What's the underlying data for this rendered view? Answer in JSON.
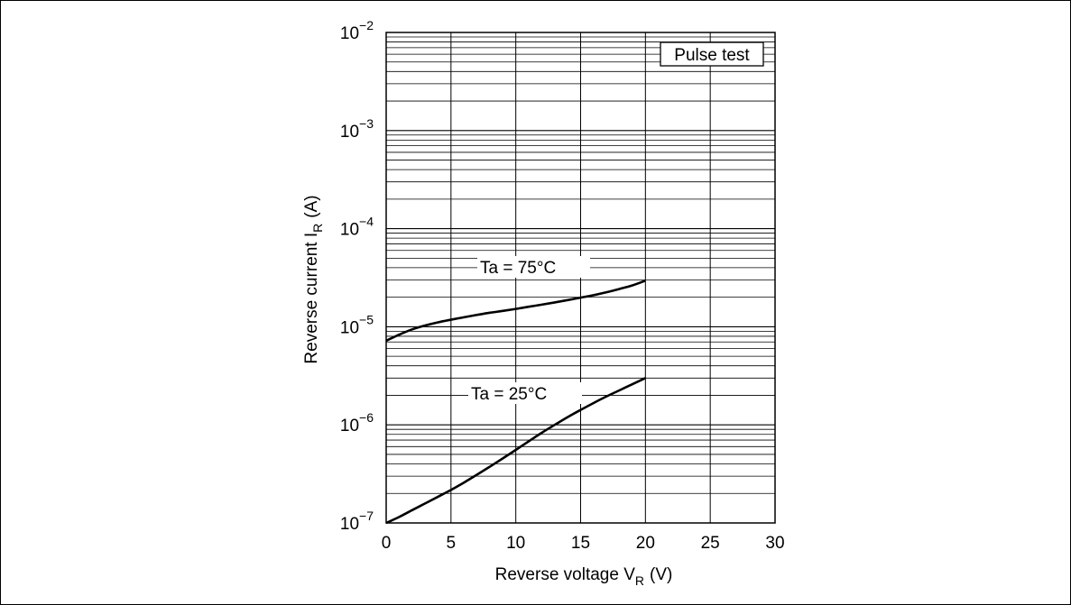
{
  "chart_data": {
    "type": "line",
    "xscale": "linear",
    "yscale": "log",
    "xlim": [
      0,
      30
    ],
    "ylim": [
      1e-07,
      0.01
    ],
    "xticks": [
      0,
      5,
      10,
      15,
      20,
      25,
      30
    ],
    "xtick_labels": [
      "0",
      "5",
      "10",
      "15",
      "20",
      "25",
      "30"
    ],
    "yticks": [
      {
        "value": 1e-07,
        "base": "10",
        "exp": "−7"
      },
      {
        "value": 1e-06,
        "base": "10",
        "exp": "−6"
      },
      {
        "value": 1e-05,
        "base": "10",
        "exp": "−5"
      },
      {
        "value": 0.0001,
        "base": "10",
        "exp": "−4"
      },
      {
        "value": 0.001,
        "base": "10",
        "exp": "−3"
      },
      {
        "value": 0.01,
        "base": "10",
        "exp": "−2"
      }
    ],
    "xlabel": {
      "main": "Reverse voltage  V",
      "sub": "R",
      "unit": "(V)"
    },
    "ylabel": {
      "main": "Reverse current  I",
      "sub": "R",
      "unit": "(A)"
    },
    "annotation_box": "Pulse test",
    "grid": true,
    "series": [
      {
        "name": "Ta = 75°C",
        "x": [
          0,
          1,
          2,
          3,
          4,
          5,
          6,
          7,
          8,
          9,
          10,
          11,
          12,
          13,
          14,
          15,
          16,
          17,
          18,
          19,
          20
        ],
        "y": [
          7.2e-06,
          8.3e-06,
          9.4e-06,
          1.03e-05,
          1.11e-05,
          1.18e-05,
          1.25e-05,
          1.32e-05,
          1.39e-05,
          1.45e-05,
          1.52e-05,
          1.6e-05,
          1.68e-05,
          1.77e-05,
          1.87e-05,
          1.98e-05,
          2.1e-05,
          2.25e-05,
          2.43e-05,
          2.64e-05,
          2.95e-05
        ]
      },
      {
        "name": "Ta = 25°C",
        "x": [
          0,
          1,
          2,
          3,
          4,
          5,
          6,
          7,
          8,
          9,
          10,
          11,
          12,
          13,
          14,
          15,
          16,
          17,
          18,
          19,
          20
        ],
        "y": [
          1e-07,
          1.15e-07,
          1.35e-07,
          1.58e-07,
          1.85e-07,
          2.17e-07,
          2.58e-07,
          3.1e-07,
          3.75e-07,
          4.55e-07,
          5.55e-07,
          6.8e-07,
          8.3e-07,
          1e-06,
          1.2e-06,
          1.42e-06,
          1.67e-06,
          1.95e-06,
          2.25e-06,
          2.6e-06,
          3e-06
        ]
      }
    ]
  }
}
